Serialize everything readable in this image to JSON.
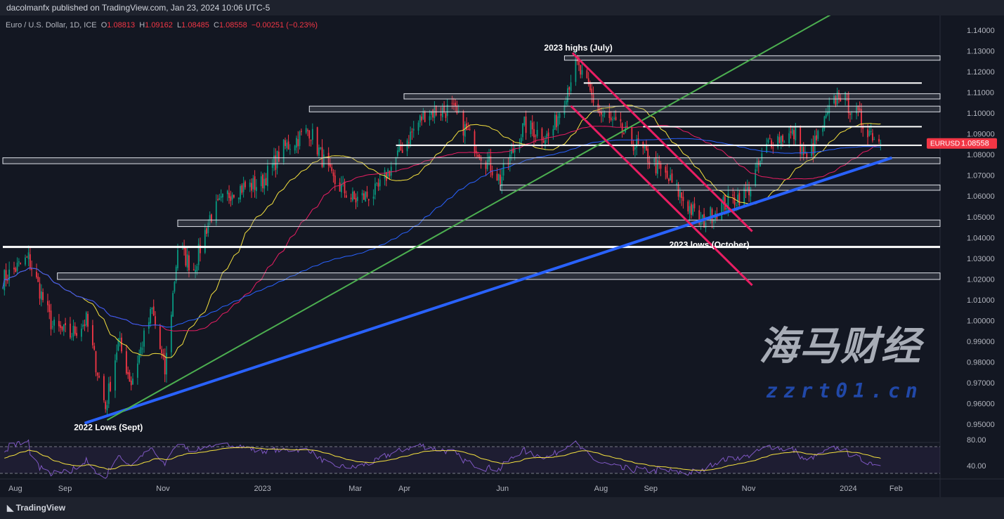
{
  "header": {
    "published": "dacolmanfx published on TradingView.com, Jan 23, 2024 10:06 UTC-5"
  },
  "legend": {
    "symbol": "Euro / U.S. Dollar, 1D, ICE",
    "o_label": "O",
    "open": "1.08813",
    "h_label": "H",
    "high": "1.09162",
    "l_label": "L",
    "low": "1.08485",
    "c_label": "C",
    "close": "1.08558",
    "change": "−0.00251 (−0.23%)"
  },
  "price_tag": {
    "symbol": "EURUSD",
    "price": "1.08558",
    "color": "#f23645"
  },
  "footer": {
    "logo": "TradingView"
  },
  "watermark": {
    "text": "海马财经",
    "url": "zzrt01.cn"
  },
  "chart_data": {
    "type": "candlestick",
    "ylim": [
      0.945,
      1.145
    ],
    "y_ticks": [
      "1.14000",
      "1.13000",
      "1.12000",
      "1.11000",
      "1.10000",
      "1.09000",
      "1.08000",
      "1.07000",
      "1.06000",
      "1.05000",
      "1.04000",
      "1.03000",
      "1.02000",
      "1.01000",
      "1.00000",
      "0.99000",
      "0.98000",
      "0.97000",
      "0.96000",
      "0.95000"
    ],
    "x_ticks": [
      {
        "label": "Aug",
        "date": "2022-08-01"
      },
      {
        "label": "Sep",
        "date": "2022-09-01"
      },
      {
        "label": "Nov",
        "date": "2022-11-01"
      },
      {
        "label": "2023",
        "date": "2023-01-01"
      },
      {
        "label": "Mar",
        "date": "2023-03-01"
      },
      {
        "label": "Apr",
        "date": "2023-04-01"
      },
      {
        "label": "Jun",
        "date": "2023-06-01"
      },
      {
        "label": "Aug",
        "date": "2023-08-01"
      },
      {
        "label": "Sep",
        "date": "2023-09-01"
      },
      {
        "label": "Nov",
        "date": "2023-11-01"
      },
      {
        "label": "2024",
        "date": "2024-01-01"
      },
      {
        "label": "Feb",
        "date": "2024-02-01"
      }
    ],
    "close_path": [
      [
        "2022-07-25",
        1.02
      ],
      [
        "2022-08-10",
        1.03
      ],
      [
        "2022-08-25",
        0.997
      ],
      [
        "2022-09-05",
        0.993
      ],
      [
        "2022-09-15",
        1.0
      ],
      [
        "2022-09-27",
        0.958
      ],
      [
        "2022-10-05",
        0.99
      ],
      [
        "2022-10-13",
        0.97
      ],
      [
        "2022-10-26",
        1.005
      ],
      [
        "2022-11-03",
        0.975
      ],
      [
        "2022-11-11",
        1.035
      ],
      [
        "2022-11-21",
        1.025
      ],
      [
        "2022-12-01",
        1.05
      ],
      [
        "2022-12-15",
        1.063
      ],
      [
        "2023-01-02",
        1.066
      ],
      [
        "2023-01-16",
        1.083
      ],
      [
        "2023-02-01",
        1.092
      ],
      [
        "2023-02-15",
        1.068
      ],
      [
        "2023-03-01",
        1.058
      ],
      [
        "2023-03-15",
        1.062
      ],
      [
        "2023-04-01",
        1.085
      ],
      [
        "2023-04-14",
        1.1
      ],
      [
        "2023-05-01",
        1.102
      ],
      [
        "2023-05-15",
        1.085
      ],
      [
        "2023-05-31",
        1.068
      ],
      [
        "2023-06-15",
        1.094
      ],
      [
        "2023-07-01",
        1.088
      ],
      [
        "2023-07-17",
        1.124
      ],
      [
        "2023-08-01",
        1.1
      ],
      [
        "2023-08-15",
        1.091
      ],
      [
        "2023-09-01",
        1.078
      ],
      [
        "2023-09-15",
        1.066
      ],
      [
        "2023-10-03",
        1.047
      ],
      [
        "2023-10-17",
        1.056
      ],
      [
        "2023-11-01",
        1.062
      ],
      [
        "2023-11-15",
        1.087
      ],
      [
        "2023-12-01",
        1.09
      ],
      [
        "2023-12-08",
        1.077
      ],
      [
        "2023-12-28",
        1.11
      ],
      [
        "2024-01-10",
        1.097
      ],
      [
        "2024-01-23",
        1.0856
      ]
    ],
    "moving_averages": [
      {
        "period": 50,
        "color": "#f5e13f"
      },
      {
        "period": 100,
        "color": "#e91e63"
      },
      {
        "period": 200,
        "color": "#2962ff"
      }
    ],
    "rsi": {
      "levels": [
        "80.00",
        "40.00"
      ],
      "line_color": "#7e57c2",
      "signal_color": "#f5e13f"
    },
    "annotations": {
      "labels": [
        {
          "text": "2023 highs (July)",
          "date": "2023-07-17",
          "price": 1.1315
        },
        {
          "text": "2023 lows (October)",
          "date": "2023-10-03",
          "price": 1.0365
        },
        {
          "text": "2022 Lows (Sept)",
          "date": "2022-09-27",
          "price": 0.9485
        }
      ],
      "zones": [
        {
          "from": "2023-07-10",
          "hi": 1.127,
          "lo": 1.1262
        },
        {
          "from": "2023-04-01",
          "hi": 1.1087,
          "lo": 1.1075
        },
        {
          "from": "2023-02-01",
          "hi": 1.1027,
          "lo": 1.1013
        },
        {
          "from": "2022-07-25",
          "hi": 1.0778,
          "lo": 1.0763
        },
        {
          "from": "2023-05-31",
          "hi": 1.0647,
          "lo": 1.0635
        },
        {
          "from": "2022-11-11",
          "hi": 1.0478,
          "lo": 1.046
        },
        {
          "from": "2022-08-28",
          "hi": 1.0223,
          "lo": 1.0205
        }
      ],
      "levels": [
        {
          "from": "2023-07-22",
          "price": 1.1145
        },
        {
          "from": "2023-08-28",
          "price": 1.0935
        },
        {
          "from": "2023-03-27",
          "price": 1.0845
        },
        {
          "from": "2022-07-25",
          "price": 1.0355,
          "thick": true
        }
      ],
      "trendlines": [
        {
          "color": "#2962ff",
          "p1": [
            "2022-09-14",
            0.9505
          ],
          "p2": [
            "2024-01-30",
            1.0785
          ],
          "width": 4
        },
        {
          "color": "#4caf50",
          "p1": [
            "2022-09-28",
            0.952
          ],
          "p2": [
            "2023-12-23",
            1.1475
          ],
          "width": 2
        },
        {
          "color": "#e91e63",
          "p1": [
            "2023-07-15",
            1.129
          ],
          "p2": [
            "2023-11-04",
            1.043
          ],
          "width": 3
        },
        {
          "color": "#e91e63",
          "p1": [
            "2023-07-14",
            1.1035
          ],
          "p2": [
            "2023-11-04",
            1.017
          ],
          "width": 3
        }
      ]
    }
  }
}
